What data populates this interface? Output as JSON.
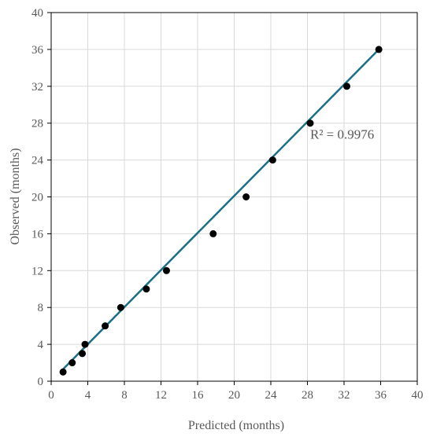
{
  "chart_data": {
    "type": "scatter",
    "title": "",
    "xlabel": "Predicted (months)",
    "ylabel": "Observed (months)",
    "xlim": [
      0,
      40
    ],
    "ylim": [
      0,
      40
    ],
    "xticks": [
      "0",
      "4",
      "8",
      "12",
      "16",
      "20",
      "24",
      "28",
      "32",
      "36",
      "40"
    ],
    "yticks": [
      "0",
      "4",
      "8",
      "12",
      "16",
      "20",
      "24",
      "28",
      "32",
      "36",
      "40"
    ],
    "grid": true,
    "points": [
      {
        "x": 1.3,
        "y": 1
      },
      {
        "x": 2.3,
        "y": 2
      },
      {
        "x": 3.4,
        "y": 3
      },
      {
        "x": 3.7,
        "y": 4
      },
      {
        "x": 5.9,
        "y": 6
      },
      {
        "x": 7.6,
        "y": 8
      },
      {
        "x": 10.4,
        "y": 10
      },
      {
        "x": 12.6,
        "y": 12
      },
      {
        "x": 17.7,
        "y": 16
      },
      {
        "x": 21.3,
        "y": 20
      },
      {
        "x": 24.2,
        "y": 24
      },
      {
        "x": 28.3,
        "y": 28
      },
      {
        "x": 32.3,
        "y": 32
      },
      {
        "x": 35.8,
        "y": 36
      }
    ],
    "trendline": {
      "x_start": 1.0,
      "y_start": 1.0,
      "x_end": 35.8,
      "y_end": 36.0,
      "color": "#1b6f86"
    },
    "annotation": {
      "text": "R² = 0.9976",
      "x": 28.3,
      "y": 26.3
    },
    "point_color": "#000000"
  }
}
